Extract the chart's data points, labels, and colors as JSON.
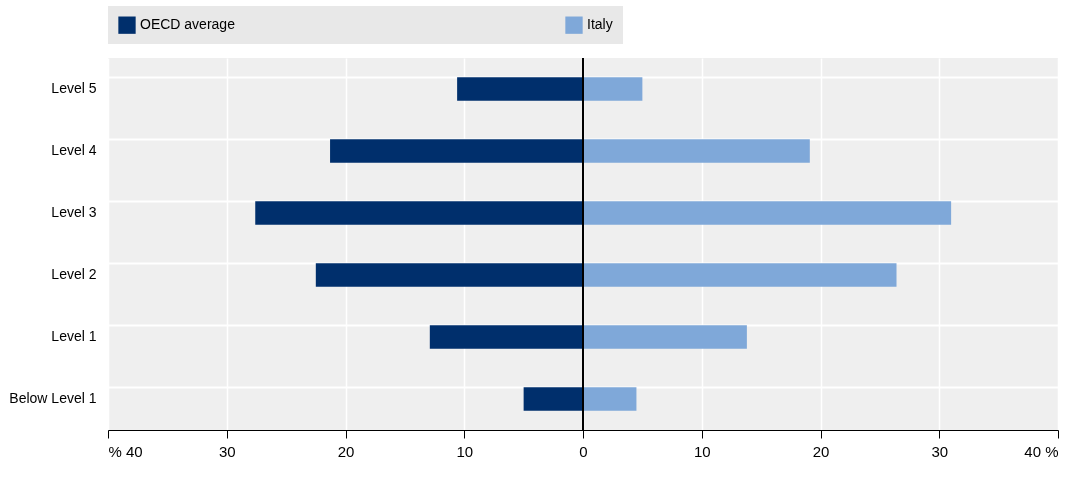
{
  "chart_data": {
    "type": "bar",
    "orientation": "horizontal",
    "categories": [
      "Level 5",
      "Level 4",
      "Level 3",
      "Level 2",
      "Level 1",
      "Below Level 1"
    ],
    "series": [
      {
        "name": "OECD average",
        "color": "#002f6c",
        "values": [
          -10.6,
          -21.3,
          -27.6,
          -22.5,
          -12.9,
          -5.0
        ]
      },
      {
        "name": "Italy",
        "color": "#7fa8d9",
        "values": [
          5.0,
          19.1,
          31.0,
          26.4,
          13.8,
          4.5
        ]
      }
    ],
    "xlim": [
      -40,
      40
    ],
    "xticks": [
      {
        "value": -40,
        "label": "% 40"
      },
      {
        "value": -30,
        "label": "30"
      },
      {
        "value": -20,
        "label": "20"
      },
      {
        "value": -10,
        "label": "10"
      },
      0,
      10,
      20,
      30,
      {
        "value": 40,
        "label": "40 %"
      }
    ],
    "stacked": true,
    "grid": true,
    "legend": "top"
  }
}
